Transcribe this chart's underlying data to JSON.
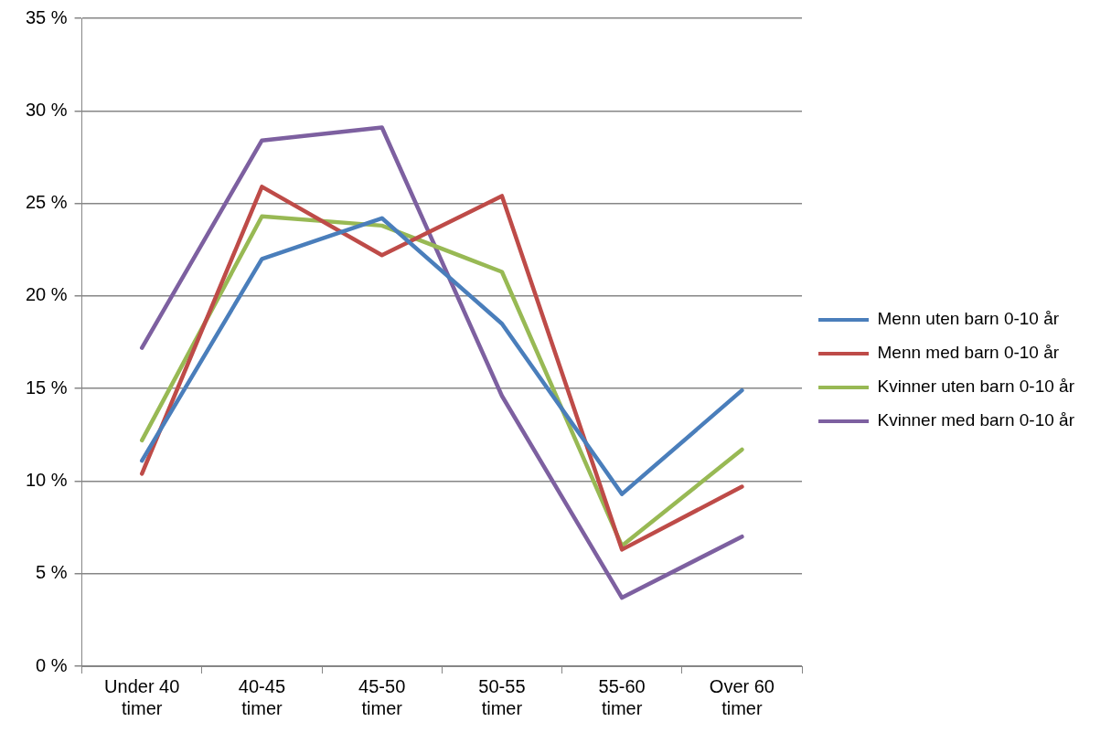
{
  "chart_data": {
    "type": "line",
    "categories": [
      "Under 40 timer",
      "40-45 timer",
      "45-50 timer",
      "50-55 timer",
      "55-60 timer",
      "Over 60 timer"
    ],
    "series": [
      {
        "name": "Menn uten barn 0-10 år",
        "color": "#4a7ebb",
        "values": [
          11.1,
          22.0,
          24.2,
          18.5,
          9.3,
          14.9
        ]
      },
      {
        "name": "Menn med barn 0-10 år",
        "color": "#be4b48",
        "values": [
          10.4,
          25.9,
          22.2,
          25.4,
          6.3,
          9.7
        ]
      },
      {
        "name": "Kvinner uten barn 0-10 år",
        "color": "#98b954",
        "values": [
          12.2,
          24.3,
          23.8,
          21.3,
          6.5,
          11.7
        ]
      },
      {
        "name": "Kvinner med barn 0-10 år",
        "color": "#7d60a0",
        "values": [
          17.2,
          28.4,
          29.1,
          14.6,
          3.7,
          7.0
        ]
      }
    ],
    "ylim": [
      0,
      35
    ],
    "yticks": [
      {
        "value": 0,
        "label": "0 %"
      },
      {
        "value": 5,
        "label": "5 %"
      },
      {
        "value": 10,
        "label": "10 %"
      },
      {
        "value": 15,
        "label": "15 %"
      },
      {
        "value": 20,
        "label": "20 %"
      },
      {
        "value": 25,
        "label": "25 %"
      },
      {
        "value": 30,
        "label": "30 %"
      },
      {
        "value": 35,
        "label": "35 %"
      }
    ],
    "grid": "y",
    "legend": "right",
    "marker": "none",
    "line_style": "solid"
  }
}
